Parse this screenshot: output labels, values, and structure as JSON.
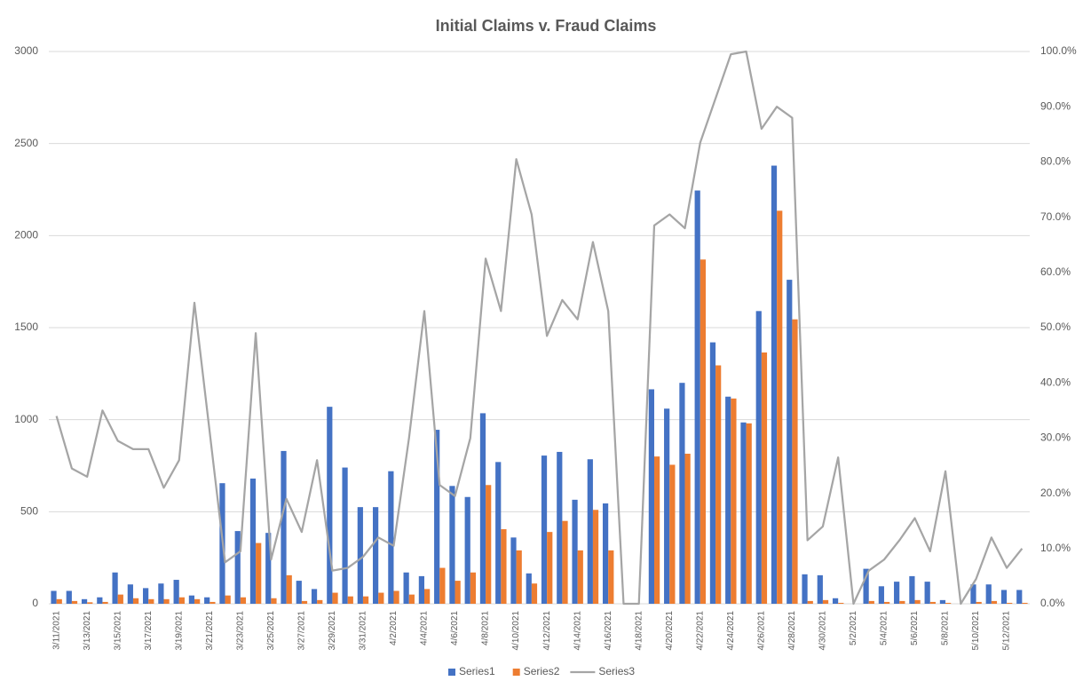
{
  "chart_data": {
    "type": "bar-line",
    "title": "Initial Claims v. Fraud Claims",
    "categories": [
      "3/11/2021",
      null,
      "3/13/2021",
      null,
      "3/15/2021",
      null,
      "3/17/2021",
      null,
      "3/19/2021",
      null,
      "3/21/2021",
      null,
      "3/23/2021",
      null,
      "3/25/2021",
      null,
      "3/27/2021",
      null,
      "3/29/2021",
      null,
      "3/31/2021",
      null,
      "4/2/2021",
      null,
      "4/4/2021",
      null,
      "4/6/2021",
      null,
      "4/8/2021",
      null,
      "4/10/2021",
      null,
      "4/12/2021",
      null,
      "4/14/2021",
      null,
      "4/16/2021",
      null,
      "4/18/2021",
      null,
      "4/20/2021",
      null,
      "4/22/2021",
      null,
      "4/24/2021",
      null,
      "4/26/2021",
      null,
      "4/28/2021",
      null,
      "4/30/2021",
      null,
      "5/2/2021",
      null,
      "5/4/2021",
      null,
      "5/6/2021",
      null,
      "5/8/2021",
      null,
      "5/10/2021",
      null,
      "5/12/2021",
      null
    ],
    "series": [
      {
        "name": "Series1",
        "color": "#4472c4",
        "kind": "bar",
        "values": [
          70,
          70,
          25,
          35,
          170,
          105,
          85,
          110,
          130,
          45,
          35,
          655,
          395,
          680,
          385,
          830,
          125,
          80,
          1070,
          740,
          525,
          525,
          720,
          170,
          150,
          945,
          640,
          580,
          1035,
          770,
          360,
          165,
          805,
          825,
          565,
          785,
          545,
          0,
          0,
          1165,
          1060,
          1200,
          2245,
          1420,
          1125,
          985,
          1590,
          2380,
          1760,
          160,
          155,
          30,
          0,
          190,
          95,
          120,
          150,
          120,
          20,
          0,
          105,
          105,
          75,
          75
        ]
      },
      {
        "name": "Series2",
        "color": "#ed7d31",
        "kind": "bar",
        "values": [
          25,
          15,
          8,
          10,
          50,
          30,
          25,
          25,
          35,
          25,
          10,
          45,
          35,
          330,
          30,
          155,
          15,
          20,
          60,
          40,
          40,
          60,
          70,
          50,
          80,
          195,
          125,
          170,
          645,
          405,
          290,
          110,
          390,
          450,
          290,
          510,
          290,
          0,
          0,
          800,
          755,
          815,
          1870,
          1295,
          1115,
          980,
          1365,
          2135,
          1545,
          15,
          20,
          5,
          0,
          15,
          10,
          15,
          20,
          10,
          5,
          0,
          10,
          15,
          5,
          5
        ]
      },
      {
        "name": "Series3",
        "color": "#a5a5a5",
        "kind": "line",
        "axis": "y2",
        "values": [
          34,
          24.5,
          23,
          35,
          29.5,
          28,
          28,
          21,
          26,
          54.5,
          31,
          7.5,
          9.5,
          49,
          8,
          19,
          13,
          26,
          6,
          6.5,
          8.5,
          12,
          10.5,
          30,
          53,
          21.5,
          19.5,
          30,
          62.5,
          53,
          80.5,
          70.5,
          48.5,
          55,
          51.5,
          65.5,
          53,
          0,
          0,
          68.5,
          70.5,
          68,
          83.5,
          91.5,
          99.5,
          100,
          86,
          90,
          88,
          11.5,
          14,
          26.5,
          0,
          6,
          8,
          11.5,
          15.5,
          9.5,
          24,
          0,
          4.5,
          12,
          6.5,
          10
        ]
      }
    ],
    "ylim": [
      0,
      3000
    ],
    "yticks": [
      0,
      500,
      1000,
      1500,
      2000,
      2500,
      3000
    ],
    "y2lim": [
      0,
      100
    ],
    "y2ticks": [
      {
        "value": 0,
        "label": "0.0%"
      },
      {
        "value": 10,
        "label": "10.0%"
      },
      {
        "value": 20,
        "label": "20.0%"
      },
      {
        "value": 30,
        "label": "30.0%"
      },
      {
        "value": 40,
        "label": "40.0%"
      },
      {
        "value": 50,
        "label": "50.0%"
      },
      {
        "value": 60,
        "label": "60.0%"
      },
      {
        "value": 70,
        "label": "70.0%"
      },
      {
        "value": 80,
        "label": "80.0%"
      },
      {
        "value": 90,
        "label": "90.0%"
      },
      {
        "value": 100,
        "label": "100.0%"
      }
    ],
    "grid": true,
    "legend": "bottom"
  }
}
